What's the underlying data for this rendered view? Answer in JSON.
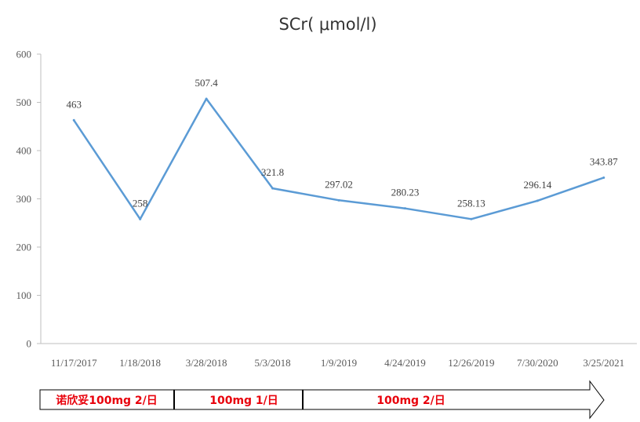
{
  "chart_data": {
    "type": "line",
    "title": "SCr( μmol/l)",
    "categories": [
      "11/17/2017",
      "1/18/2018",
      "3/28/2018",
      "5/3/2018",
      "1/9/2019",
      "4/24/2019",
      "12/26/2019",
      "7/30/2020",
      "3/25/2021"
    ],
    "series": [
      {
        "values": [
          463,
          258,
          507.4,
          321.8,
          297.02,
          280.23,
          258.13,
          296.14,
          343.87
        ],
        "labels": [
          "463",
          "258",
          "507.4",
          "321.8",
          "297.02",
          "280.23",
          "258.13",
          "296.14",
          "343.87"
        ]
      }
    ],
    "ylim": [
      0,
      600
    ],
    "yticks": [
      "0",
      "100",
      "200",
      "300",
      "400",
      "500",
      "600"
    ],
    "grid": false,
    "legend": "none",
    "line_color": "#5b9bd5"
  },
  "treatment_arrow": {
    "phases": [
      {
        "label": "诺欣妥100mg 2/日"
      },
      {
        "label": "100mg 1/日"
      },
      {
        "label": "100mg 2/日"
      }
    ],
    "text_color": "#e8000b"
  }
}
